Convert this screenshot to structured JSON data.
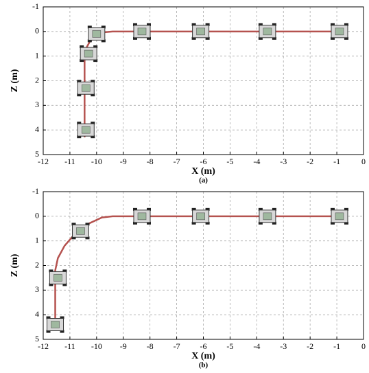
{
  "chart_data": [
    {
      "type": "line",
      "xlabel": "X (m)",
      "ylabel": "Z (m)",
      "caption": "(a)",
      "xlim": [
        -12,
        0
      ],
      "ylim": [
        5,
        -1
      ],
      "xticks": [
        -12,
        -11,
        -10,
        -9,
        -8,
        -7,
        -6,
        -5,
        -4,
        -3,
        -2,
        -1,
        0
      ],
      "yticks": [
        -1,
        0,
        1,
        2,
        3,
        4,
        5
      ],
      "grid": true,
      "series": [
        {
          "color": "#b5524f",
          "x": [
            -10.45,
            -10.45,
            -10.4,
            -10.25,
            -10.0,
            -9.7,
            -9.4,
            -0.8
          ],
          "values": [
            4.3,
            1.0,
            0.7,
            0.4,
            0.15,
            0.03,
            0,
            0
          ]
        }
      ],
      "vehicles": {
        "x": [
          -10.4,
          -10.4,
          -10.3,
          -10.0,
          -8.3,
          -6.1,
          -3.6,
          -0.9
        ],
        "values": [
          4.0,
          2.3,
          0.9,
          0.1,
          0,
          0,
          0,
          0
        ]
      }
    },
    {
      "type": "line",
      "xlabel": "X (m)",
      "ylabel": "Z (m)",
      "caption": "(b)",
      "xlim": [
        -12,
        0
      ],
      "ylim": [
        5,
        -1
      ],
      "xticks": [
        -12,
        -11,
        -10,
        -9,
        -8,
        -7,
        -6,
        -5,
        -4,
        -3,
        -2,
        -1,
        0
      ],
      "yticks": [
        -1,
        0,
        1,
        2,
        3,
        4,
        5
      ],
      "grid": true,
      "series": [
        {
          "color": "#b5524f",
          "x": [
            -11.55,
            -11.55,
            -11.45,
            -11.2,
            -10.8,
            -10.3,
            -9.8,
            -9.4,
            -0.8
          ],
          "values": [
            4.3,
            2.2,
            1.7,
            1.2,
            0.7,
            0.3,
            0.05,
            0,
            0
          ]
        }
      ],
      "vehicles": {
        "x": [
          -11.55,
          -11.45,
          -10.6,
          -8.3,
          -6.1,
          -3.6,
          -0.9
        ],
        "values": [
          4.4,
          2.5,
          0.6,
          0,
          0,
          0,
          0
        ]
      }
    }
  ]
}
